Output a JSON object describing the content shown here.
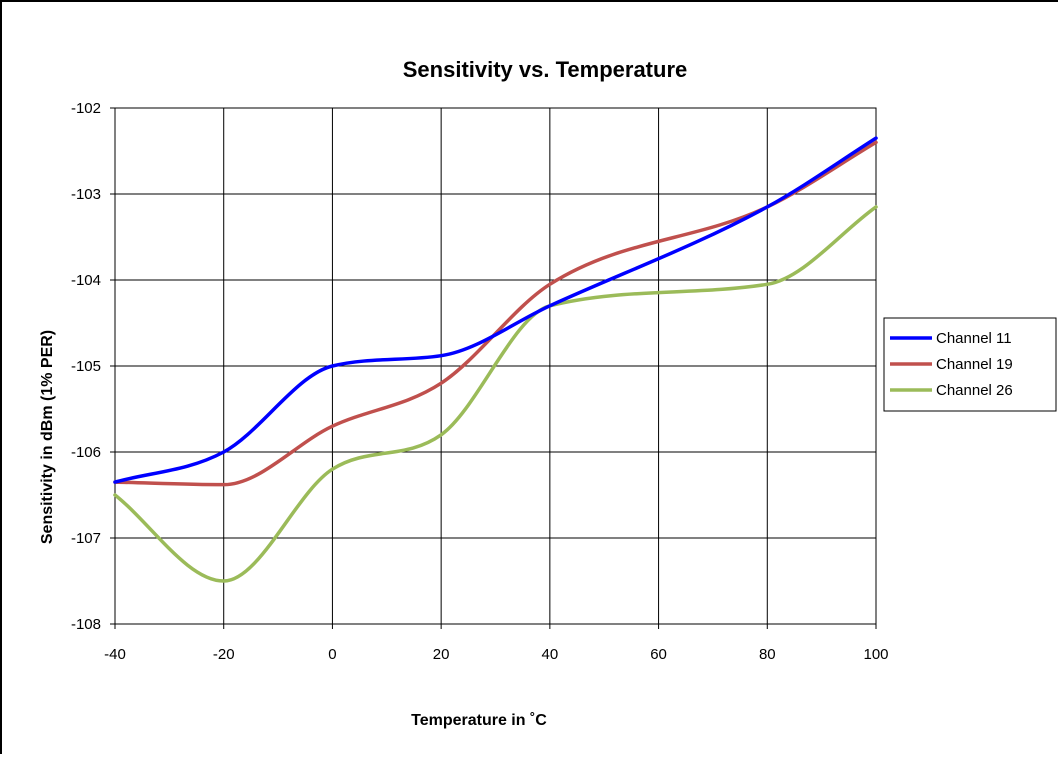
{
  "chart_data": {
    "type": "line",
    "title": "Sensitivity vs. Temperature",
    "xlabel": "Temperature in ˚C",
    "ylabel": "Sensitivity in dBm (1% PER)",
    "xlim": [
      -40,
      100
    ],
    "ylim": [
      -108,
      -102
    ],
    "xticks": [
      -40,
      -20,
      0,
      20,
      40,
      60,
      80,
      100
    ],
    "yticks": [
      -108,
      -107,
      -106,
      -105,
      -104,
      -103,
      -102
    ],
    "grid": true,
    "legend_position": "right",
    "x": [
      -40,
      -20,
      0,
      20,
      40,
      80,
      100
    ],
    "series": [
      {
        "name": "Channel 11",
        "color": "#0000ff",
        "values": [
          -106.35,
          -106.0,
          -105.0,
          -104.88,
          -104.3,
          -103.15,
          -102.35
        ]
      },
      {
        "name": "Channel 19",
        "color": "#c0504d",
        "values": [
          -106.35,
          -106.38,
          -105.7,
          -105.2,
          -104.05,
          -103.15,
          -102.4
        ]
      },
      {
        "name": "Channel 26",
        "color": "#9bbb59",
        "values": [
          -106.5,
          -107.5,
          -106.2,
          -105.8,
          -104.3,
          -104.05,
          -103.15
        ]
      }
    ]
  }
}
